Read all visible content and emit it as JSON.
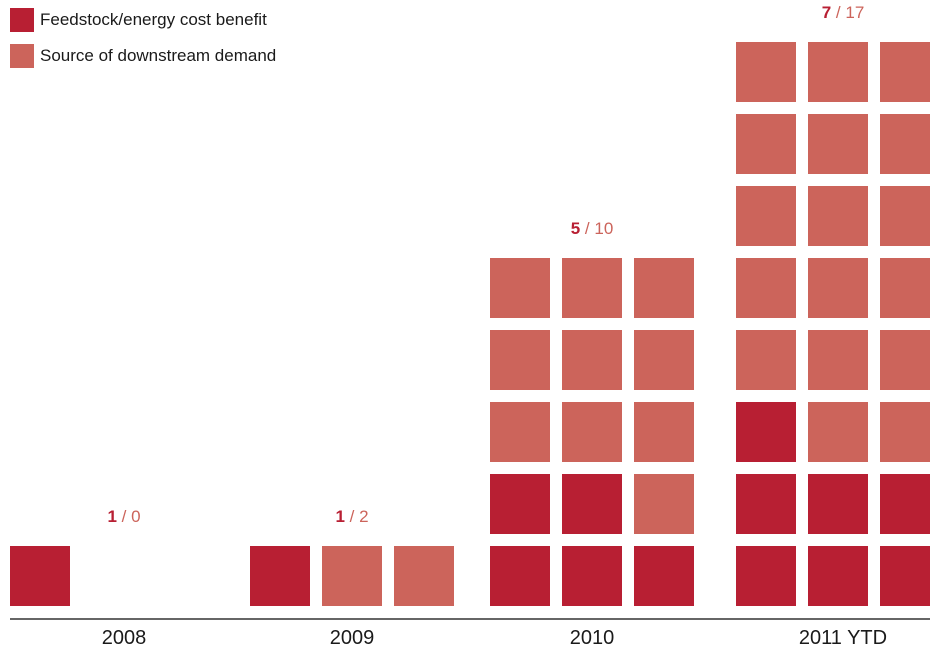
{
  "legend": {
    "items": [
      {
        "label": "Feedstock/energy cost benefit",
        "color": "#b81f33"
      },
      {
        "label": "Source of downstream demand",
        "color": "#cc645b"
      }
    ]
  },
  "chart_data": {
    "type": "unit-bar",
    "categories": [
      "2008",
      "2009",
      "2010",
      "2011 YTD"
    ],
    "series": [
      {
        "name": "Feedstock/energy cost benefit",
        "values": [
          1,
          1,
          5,
          7
        ],
        "color": "#b81f33"
      },
      {
        "name": "Source of downstream demand",
        "values": [
          0,
          2,
          10,
          17
        ],
        "color": "#cc645b"
      }
    ],
    "annotations": [
      {
        "feedstock": "1",
        "separator": "/",
        "demand": "0"
      },
      {
        "feedstock": "1",
        "separator": "/",
        "demand": "2"
      },
      {
        "feedstock": "5",
        "separator": "/",
        "demand": "10"
      },
      {
        "feedstock": "7",
        "separator": "/",
        "demand": "17"
      }
    ],
    "unit": "one square = one project",
    "columns_per_row": 3,
    "separator_color": "#cc645b",
    "axis_color": "#333333"
  }
}
